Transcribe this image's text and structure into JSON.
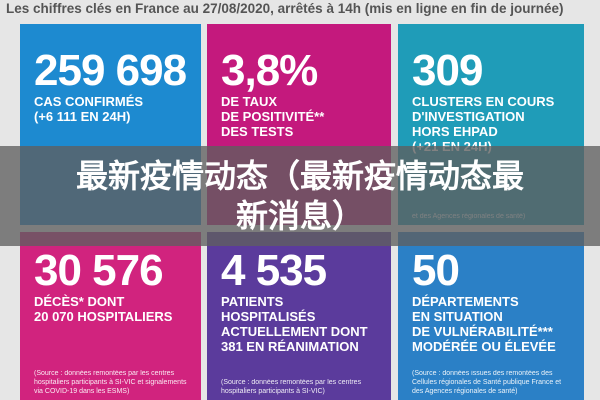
{
  "header": {
    "title": "Les chiffres clés en France au 27/08/2020, arrêtés à 14h (mis en ligne en fin de journée)"
  },
  "tiles": [
    {
      "number": "259 698",
      "lines": [
        "CAS CONFIRMÉS",
        "(+6 111 EN 24H)"
      ],
      "source": ""
    },
    {
      "number": "3,8%",
      "lines": [
        "DE TAUX",
        "DE POSITIVITÉ**",
        "DES TESTS"
      ],
      "source": ""
    },
    {
      "number": "309",
      "lines": [
        "CLUSTERS EN COURS",
        "D'INVESTIGATION",
        "HORS EHPAD",
        "(+21 EN 24H)"
      ],
      "source": "et des Agences régionales de santé)"
    },
    {
      "number": "30 576",
      "lines": [
        "DÉCÈS* DONT",
        "20 070 HOSPITALIERS"
      ],
      "source": "(Source : données remontées par les centres hospitaliers participants à SI-VIC et signalements via COVID-19 dans les ESMS)"
    },
    {
      "number": "4 535",
      "lines": [
        "PATIENTS",
        "HOSPITALISÉS",
        "ACTUELLEMENT DONT",
        "381 EN RÉANIMATION"
      ],
      "source": "(Source : données remontées par les centres hospitaliers participants à SI-VIC)"
    },
    {
      "number": "50",
      "lines": [
        "DÉPARTEMENTS",
        "EN SITUATION",
        "DE VULNÉRABILITÉ***",
        "MODÉRÉE OU ÉLEVÉE"
      ],
      "source": "(Source : données issues des remontées des Cellules régionales de Santé publique France et des Agences régionales de santé)"
    }
  ],
  "banner": {
    "lines": [
      "最新疫情动态（最新疫情动态最",
      "新消息）"
    ]
  }
}
